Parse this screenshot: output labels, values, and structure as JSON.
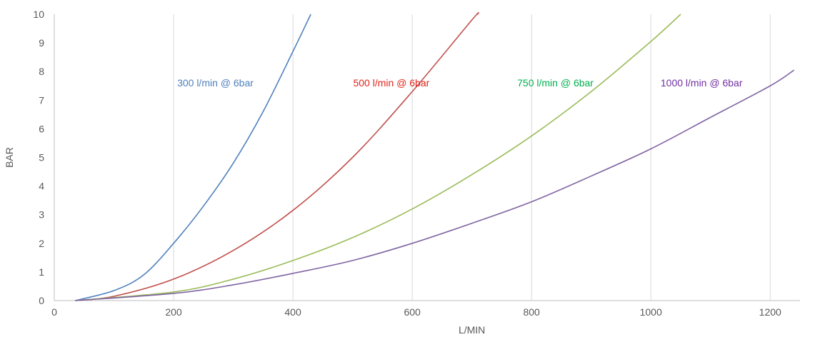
{
  "chart_data": {
    "type": "line",
    "title": "",
    "xlabel": "L/MIN",
    "ylabel": "BAR",
    "xlim": [
      0,
      1250
    ],
    "ylim": [
      0,
      10
    ],
    "x_ticks": [
      0,
      200,
      400,
      600,
      800,
      1000,
      1200
    ],
    "y_ticks": [
      0,
      1,
      2,
      3,
      4,
      5,
      6,
      7,
      8,
      9,
      10
    ],
    "grid": "vertical",
    "legend": "none",
    "series": [
      {
        "name": "300 l/min @ 6bar",
        "color": "#4f81bd",
        "points": [
          [
            35,
            0
          ],
          [
            100,
            0.35
          ],
          [
            150,
            0.9
          ],
          [
            200,
            2.0
          ],
          [
            250,
            3.3
          ],
          [
            300,
            4.8
          ],
          [
            350,
            6.6
          ],
          [
            400,
            8.7
          ],
          [
            430,
            10
          ]
        ]
      },
      {
        "name": "500 l/min @ 6bar",
        "color": "#c0504d",
        "points": [
          [
            35,
            0
          ],
          [
            100,
            0.15
          ],
          [
            200,
            0.75
          ],
          [
            300,
            1.75
          ],
          [
            400,
            3.15
          ],
          [
            500,
            5.0
          ],
          [
            600,
            7.3
          ],
          [
            700,
            9.8
          ],
          [
            710,
            10
          ]
        ]
      },
      {
        "name": "750 l/min @ 6bar",
        "color": "#9bbb59",
        "points": [
          [
            35,
            0
          ],
          [
            200,
            0.3
          ],
          [
            300,
            0.75
          ],
          [
            400,
            1.4
          ],
          [
            500,
            2.2
          ],
          [
            600,
            3.2
          ],
          [
            700,
            4.4
          ],
          [
            800,
            5.75
          ],
          [
            900,
            7.3
          ],
          [
            1000,
            9.05
          ],
          [
            1050,
            10
          ]
        ]
      },
      {
        "name": "1000 l/min @ 6bar",
        "color": "#8064a2",
        "points": [
          [
            35,
            0
          ],
          [
            200,
            0.25
          ],
          [
            300,
            0.55
          ],
          [
            400,
            0.95
          ],
          [
            500,
            1.4
          ],
          [
            600,
            2.0
          ],
          [
            700,
            2.7
          ],
          [
            800,
            3.45
          ],
          [
            900,
            4.35
          ],
          [
            1000,
            5.3
          ],
          [
            1100,
            6.4
          ],
          [
            1200,
            7.5
          ],
          [
            1240,
            8.05
          ]
        ]
      }
    ],
    "annotations": [
      {
        "text": "300 l/min @ 6bar",
        "x": 270,
        "y": 7.6,
        "color": "#4f81bd"
      },
      {
        "text": "500 l/min @ 6bar",
        "x": 565,
        "y": 7.6,
        "color": "#e2231a"
      },
      {
        "text": "750 l/min @ 6bar",
        "x": 840,
        "y": 7.6,
        "color": "#00b050"
      },
      {
        "text": "1000 l/min @ 6bar",
        "x": 1085,
        "y": 7.6,
        "color": "#7030a0"
      }
    ]
  }
}
